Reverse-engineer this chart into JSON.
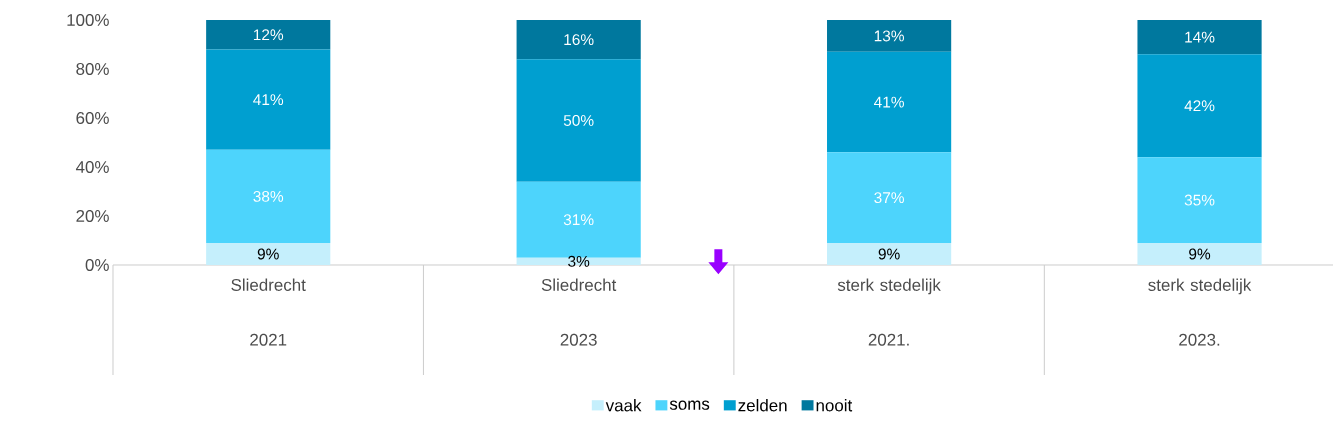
{
  "chart_data": {
    "type": "bar",
    "stacked": true,
    "categories": [
      "Sliedrecht 2021",
      "Sliedrecht 2023",
      "sterk stedelijk 2021.",
      "sterk stedelijk 2023."
    ],
    "series": [
      {
        "name": "vaak",
        "color": "#c5effc",
        "values": [
          9,
          3,
          9,
          9
        ],
        "value_labels": [
          "9%",
          "3%",
          "9%",
          "9%"
        ]
      },
      {
        "name": "soms",
        "color": "#4dd4fc",
        "values": [
          38,
          31,
          37,
          35
        ],
        "value_labels": [
          "38%",
          "31%",
          "37%",
          "35%"
        ]
      },
      {
        "name": "zelden",
        "color": "#009fd0",
        "values": [
          41,
          50,
          41,
          42
        ],
        "value_labels": [
          "41%",
          "50%",
          "41%",
          "42%"
        ]
      },
      {
        "name": "nooit",
        "color": "#00789e",
        "values": [
          12,
          16,
          13,
          14
        ],
        "value_labels": [
          "12%",
          "16%",
          "13%",
          "14%"
        ]
      }
    ],
    "ylim": [
      0,
      100
    ],
    "yticks": [
      {
        "value": 0,
        "label": "0%"
      },
      {
        "value": 20,
        "label": "20%"
      },
      {
        "value": 40,
        "label": "40%"
      },
      {
        "value": 60,
        "label": "60%"
      },
      {
        "value": 80,
        "label": "80%"
      },
      {
        "value": 100,
        "label": "100%"
      }
    ],
    "legend": "bottom"
  }
}
